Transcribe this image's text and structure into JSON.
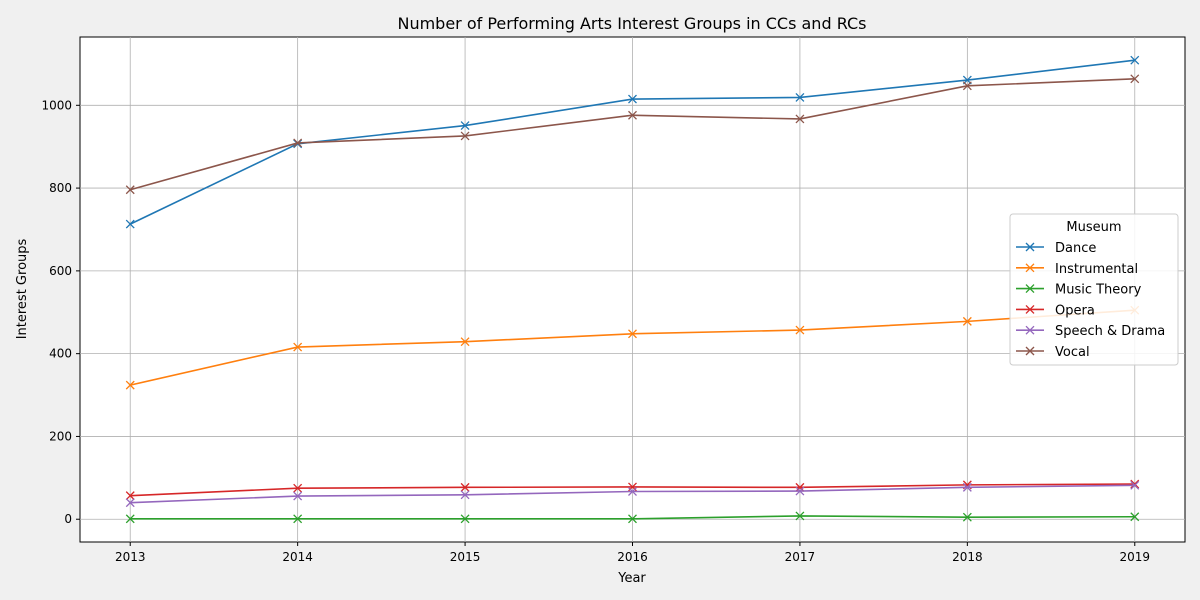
{
  "chart_data": {
    "type": "line",
    "title": "Number of Performing Arts Interest Groups in CCs and RCs",
    "xlabel": "Year",
    "ylabel": "Interest Groups",
    "x": [
      2013,
      2014,
      2015,
      2016,
      2017,
      2018,
      2019
    ],
    "xlim": [
      2012.7,
      2019.3
    ],
    "ylim": [
      -55,
      1165
    ],
    "yticks": [
      0,
      200,
      400,
      600,
      800,
      1000
    ],
    "grid": true,
    "marker": "x",
    "legend": {
      "title": "Museum",
      "placement": "center-right"
    },
    "series": [
      {
        "name": "Dance",
        "color": "#1f77b4",
        "values": [
          713,
          907,
          951,
          1015,
          1019,
          1061,
          1109
        ]
      },
      {
        "name": "Instrumental",
        "color": "#ff7f0e",
        "values": [
          324,
          416,
          429,
          448,
          457,
          478,
          505
        ]
      },
      {
        "name": "Music Theory",
        "color": "#2ca02c",
        "values": [
          1,
          1,
          1,
          1,
          8,
          5,
          6
        ]
      },
      {
        "name": "Opera",
        "color": "#d62728",
        "values": [
          57,
          75,
          77,
          78,
          77,
          83,
          85
        ]
      },
      {
        "name": "Speech & Drama",
        "color": "#9467bd",
        "values": [
          40,
          56,
          59,
          67,
          68,
          77,
          82
        ]
      },
      {
        "name": "Vocal",
        "color": "#8c564b",
        "values": [
          796,
          909,
          926,
          976,
          967,
          1047,
          1064
        ]
      }
    ]
  }
}
